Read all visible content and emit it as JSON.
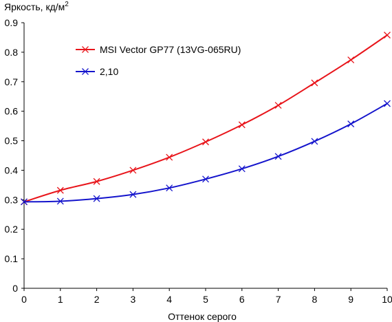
{
  "chart_data": {
    "type": "line",
    "title": "",
    "ylabel": "Яркость, кд/м",
    "ylabel_superscript": "2",
    "xlabel": "Оттенок серого",
    "x": [
      0,
      1,
      2,
      3,
      4,
      5,
      6,
      7,
      8,
      9,
      10
    ],
    "xlim": [
      0,
      10
    ],
    "ylim": [
      0,
      0.9
    ],
    "xticks": [
      "0",
      "1",
      "2",
      "3",
      "4",
      "5",
      "6",
      "7",
      "8",
      "9",
      "10"
    ],
    "yticks": [
      "0",
      "0.1",
      "0.2",
      "0.3",
      "0.4",
      "0.5",
      "0.6",
      "0.7",
      "0.8",
      "0.9"
    ],
    "grid": false,
    "legend_position": "top-left",
    "series": [
      {
        "name": "MSI Vector GP77 (13VG-065RU)",
        "color": "#e8141a",
        "marker": "x",
        "values": [
          0.293,
          0.332,
          0.362,
          0.4,
          0.444,
          0.496,
          0.554,
          0.62,
          0.696,
          0.774,
          0.858
        ]
      },
      {
        "name": "2,10",
        "color": "#1414cc",
        "marker": "x",
        "values": [
          0.293,
          0.295,
          0.304,
          0.318,
          0.34,
          0.37,
          0.405,
          0.447,
          0.498,
          0.557,
          0.626
        ]
      }
    ]
  }
}
